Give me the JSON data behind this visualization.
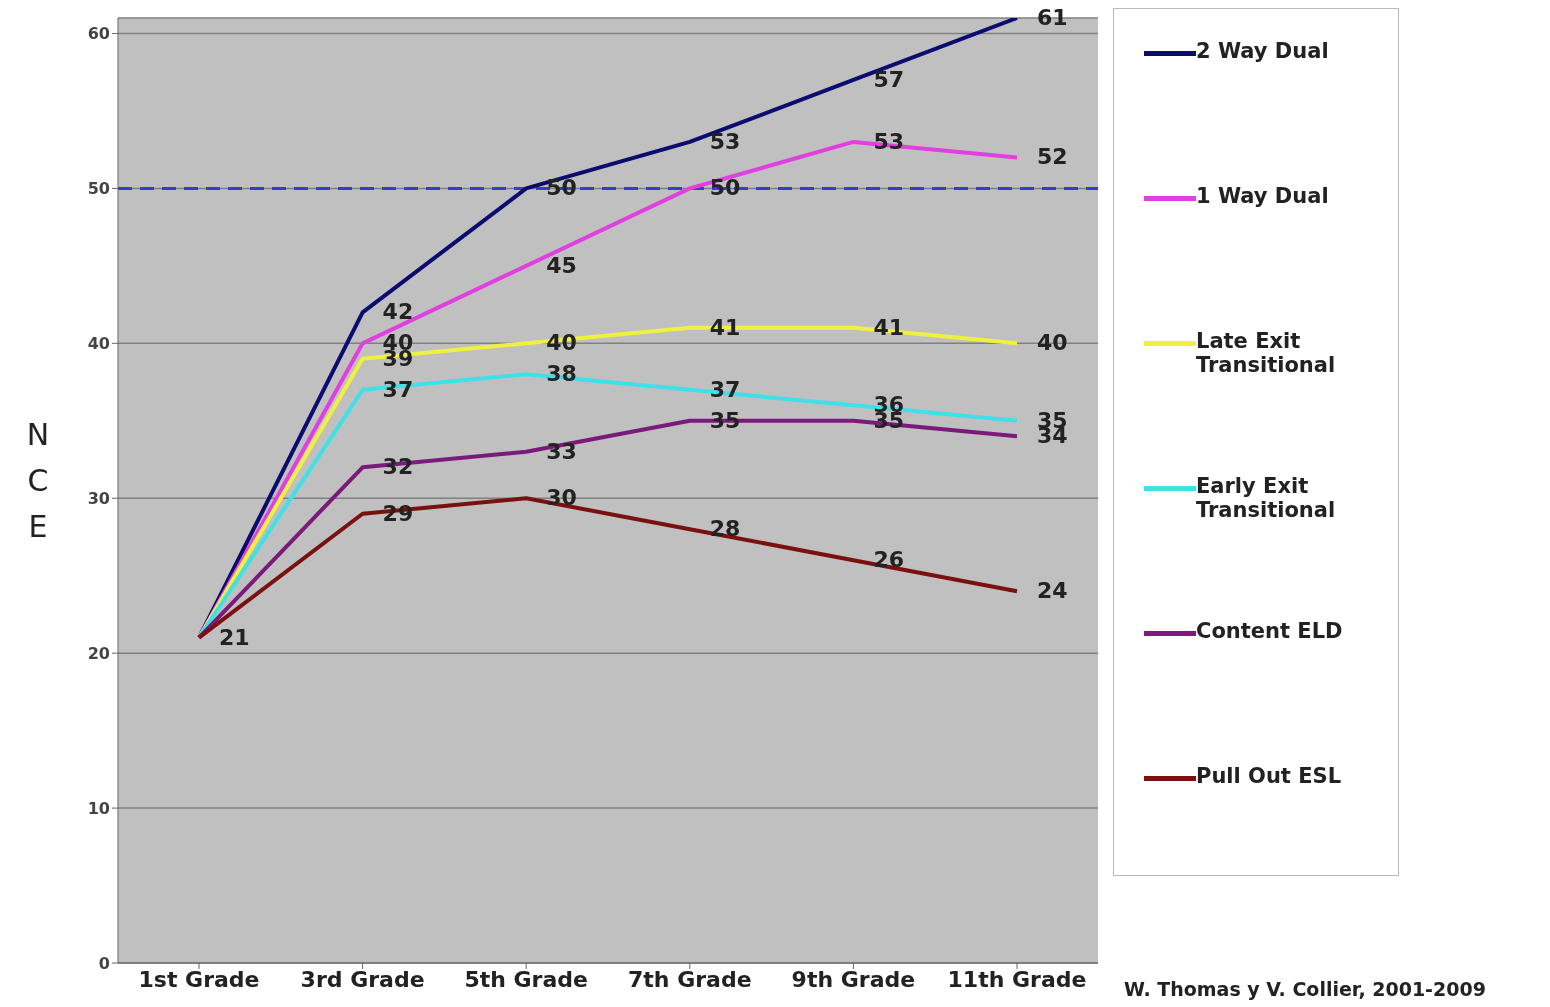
{
  "chart_data": {
    "type": "line",
    "ylabel": "NCE",
    "categories": [
      "1st Grade",
      "3rd Grade",
      "5th Grade",
      "7th Grade",
      "9th Grade",
      "11th Grade"
    ],
    "series": [
      {
        "name": "2 Way Dual",
        "color": "#0b0b70",
        "values": [
          21,
          42,
          50,
          53,
          57,
          61
        ],
        "value_labels": [
          null,
          "42",
          "50",
          "53",
          "57",
          "61"
        ]
      },
      {
        "name": "1 Way Dual",
        "color": "#e040e0",
        "values": [
          21,
          40,
          45,
          50,
          53,
          52
        ],
        "value_labels": [
          null,
          "40",
          "45",
          "50",
          "53",
          "52"
        ]
      },
      {
        "name": "Late Exit Transitional",
        "color": "#f0f040",
        "values": [
          21,
          39,
          40,
          41,
          41,
          40
        ],
        "value_labels": [
          null,
          "39",
          "40",
          "41",
          "41",
          "40"
        ]
      },
      {
        "name": "Early Exit Transitional",
        "color": "#40e0e8",
        "values": [
          21,
          37,
          38,
          37,
          36,
          35
        ],
        "value_labels": [
          null,
          "37",
          "38",
          "37",
          "36",
          "35"
        ]
      },
      {
        "name": "Content ELD",
        "color": "#7a1a7a",
        "values": [
          21,
          32,
          33,
          35,
          35,
          34
        ],
        "value_labels": [
          null,
          "32",
          "33",
          "35",
          "35",
          "34"
        ]
      },
      {
        "name": "Pull Out ESL",
        "color": "#7a1010",
        "values": [
          21,
          29,
          30,
          28,
          26,
          24
        ],
        "value_labels": [
          "21",
          "29",
          "30",
          "28",
          "26",
          "24"
        ]
      }
    ],
    "ylim": [
      0,
      61
    ],
    "yticks": [
      0,
      10,
      20,
      30,
      40,
      50,
      60
    ],
    "grid": "y",
    "legend": "right",
    "marker": "none",
    "line_style": "solid",
    "ref_lines": [
      {
        "axis": "y",
        "value": 50,
        "color": "#3a3ad0",
        "line_style": "dashed"
      }
    ],
    "annotations": [
      "W. Thomas y V. Collier, 2001-2009"
    ]
  }
}
